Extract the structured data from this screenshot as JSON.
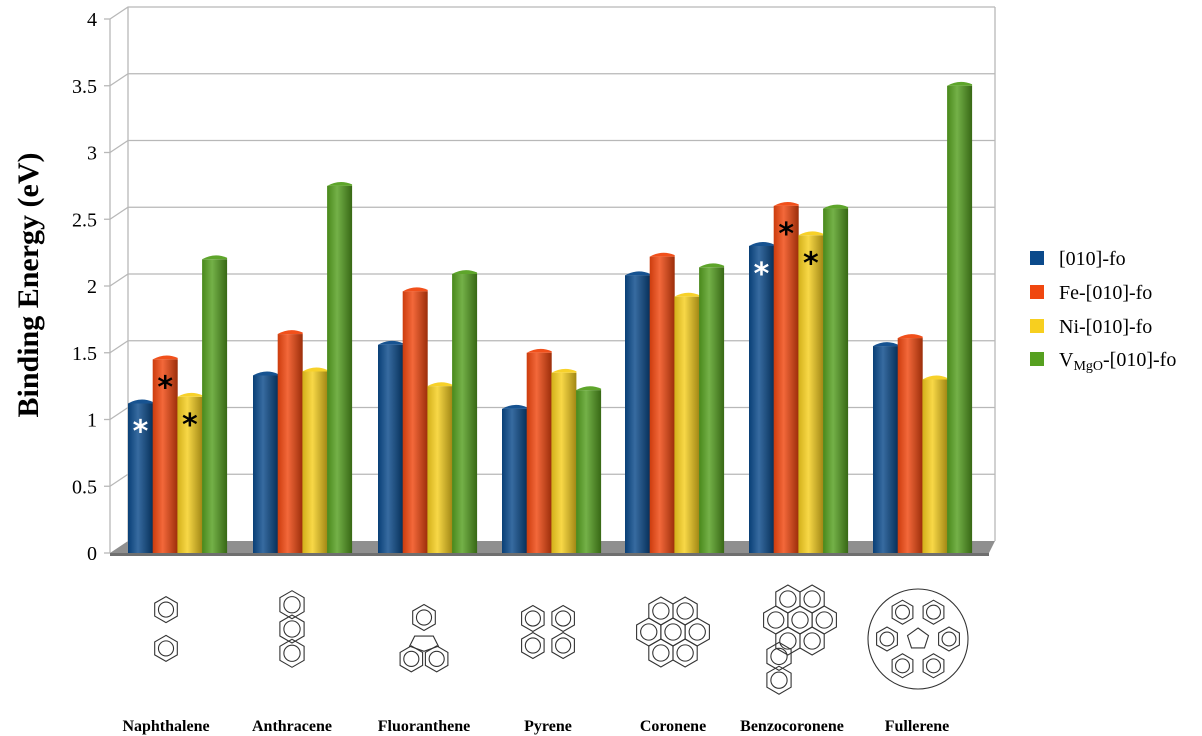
{
  "chart_data": {
    "type": "bar",
    "title": "",
    "xlabel": "",
    "ylabel": "Binding Energy (eV)",
    "ylim": [
      0,
      4
    ],
    "yticks": [
      "0",
      "0.5",
      "1",
      "1.5",
      "2",
      "2.5",
      "3",
      "3.5",
      "4"
    ],
    "grid": true,
    "legend_position": "right",
    "categories": [
      "Naphthalene",
      "Anthracene",
      "Fluoranthene",
      "Pyrene",
      "Coronene",
      "Benzocoronene",
      "Fullerene"
    ],
    "series": [
      {
        "name": "[010]-fo",
        "color": "#0b4a8b",
        "values": [
          1.12,
          1.33,
          1.56,
          1.08,
          2.08,
          2.3,
          1.55
        ]
      },
      {
        "name": "Fe-[010]-fo",
        "color": "#f0470f",
        "values": [
          1.45,
          1.64,
          1.96,
          1.5,
          2.22,
          2.6,
          1.61
        ]
      },
      {
        "name": "Ni-[010]-fo",
        "color": "#f7cf1f",
        "values": [
          1.17,
          1.36,
          1.25,
          1.35,
          1.92,
          2.38,
          1.3
        ]
      },
      {
        "name": "VMgO-[010]-fo",
        "name_main": "V",
        "name_sub": "MgO",
        "name_rest": "-[010]-fo",
        "color": "#56a020",
        "values": [
          2.2,
          2.75,
          2.09,
          1.22,
          2.14,
          2.58,
          3.5
        ]
      }
    ],
    "annotations": [
      {
        "category": "Naphthalene",
        "series": 0,
        "text": "*",
        "color": "#ffffff"
      },
      {
        "category": "Naphthalene",
        "series": 1,
        "text": "*",
        "color": "#000000"
      },
      {
        "category": "Naphthalene",
        "series": 2,
        "text": "*",
        "color": "#000000"
      },
      {
        "category": "Benzocoronene",
        "series": 0,
        "text": "*",
        "color": "#ffffff"
      },
      {
        "category": "Benzocoronene",
        "series": 1,
        "text": "*",
        "color": "#000000"
      },
      {
        "category": "Benzocoronene",
        "series": 2,
        "text": "*",
        "color": "#000000"
      }
    ],
    "molecule_icons": [
      "naphthalene-structure-icon",
      "anthracene-structure-icon",
      "fluoranthene-structure-icon",
      "pyrene-structure-icon",
      "coronene-structure-icon",
      "benzocoronene-structure-icon",
      "fullerene-structure-icon"
    ]
  }
}
